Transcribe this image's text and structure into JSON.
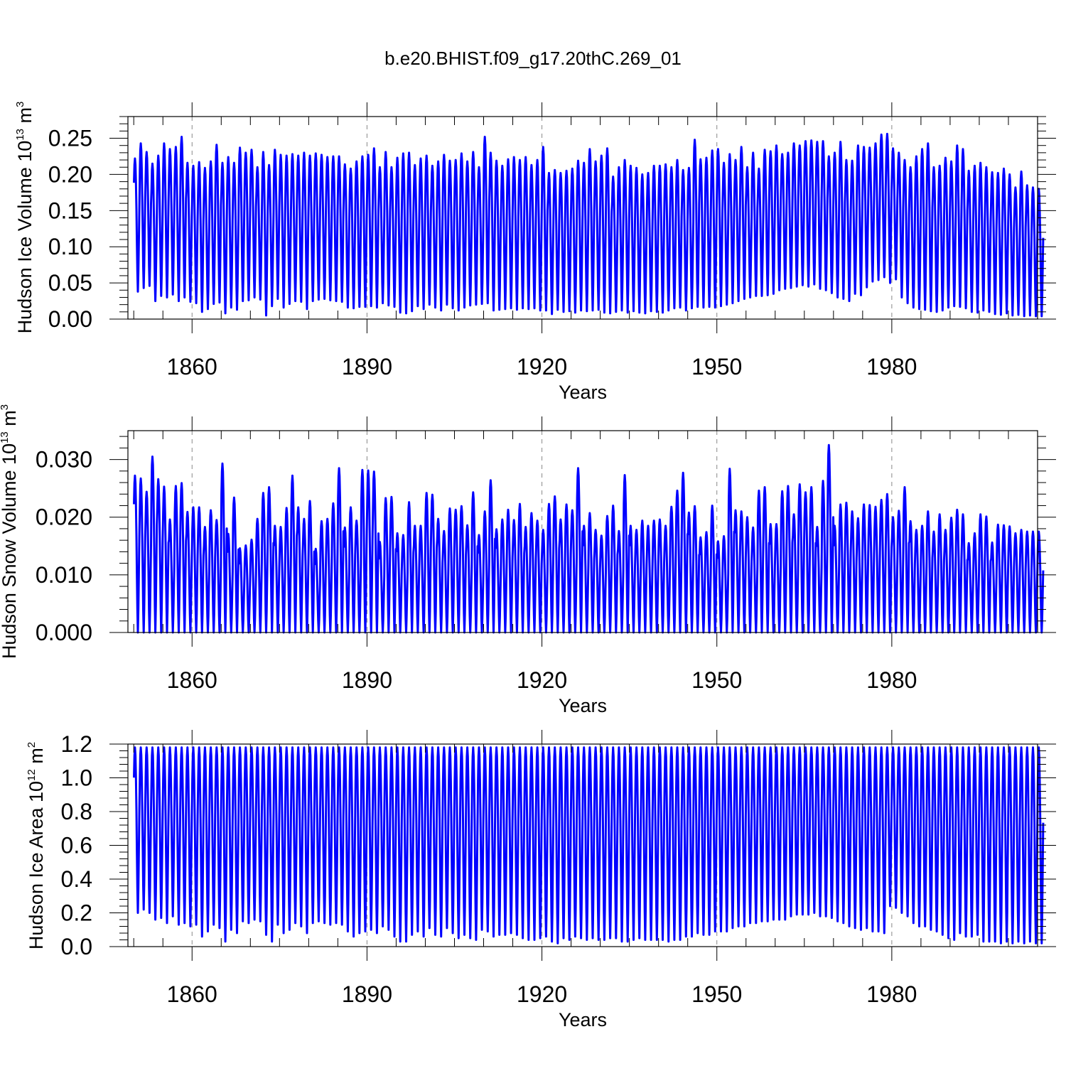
{
  "figure": {
    "title": "b.e20.BHIST.f09_g17.20thC.269_01",
    "line_color": "#0000ff",
    "grid_color": "#888888"
  },
  "chart_data": [
    {
      "type": "line",
      "name": "ice-volume",
      "title": "",
      "xlabel": "Years",
      "ylabel": "Hudson Ice Volume 10",
      "ylabel_exp": "13",
      "ylabel_unit": "m",
      "ylabel_unit_exp": "3",
      "xlim": [
        1849.0,
        2005.0
      ],
      "ylim": [
        0.0,
        0.28
      ],
      "x_ticks": [
        1860,
        1890,
        1920,
        1950,
        1980
      ],
      "y_ticks": [
        "0.00",
        "0.05",
        "0.10",
        "0.15",
        "0.20",
        "0.25"
      ],
      "y_tick_values": [
        0.0,
        0.05,
        0.1,
        0.15,
        0.2,
        0.25
      ],
      "y_minor_step": 0.01,
      "grid": "vertical dashed at major x ticks",
      "series": [
        {
          "seasonal_monthly": true,
          "start_year": 1850,
          "end_year": 2005,
          "annual_max": [
            0.222,
            0.243,
            0.231,
            0.215,
            0.226,
            0.243,
            0.235,
            0.238,
            0.252,
            0.216,
            0.212,
            0.217,
            0.209,
            0.218,
            0.241,
            0.216,
            0.224,
            0.216,
            0.237,
            0.23,
            0.234,
            0.21,
            0.231,
            0.213,
            0.234,
            0.227,
            0.226,
            0.228,
            0.226,
            0.23,
            0.226,
            0.229,
            0.227,
            0.224,
            0.225,
            0.225,
            0.214,
            0.208,
            0.218,
            0.225,
            0.227,
            0.236,
            0.21,
            0.231,
            0.21,
            0.223,
            0.229,
            0.23,
            0.213,
            0.222,
            0.226,
            0.212,
            0.218,
            0.227,
            0.219,
            0.22,
            0.229,
            0.218,
            0.231,
            0.21,
            0.252,
            0.23,
            0.219,
            0.212,
            0.221,
            0.224,
            0.22,
            0.224,
            0.213,
            0.22,
            0.238,
            0.202,
            0.206,
            0.202,
            0.205,
            0.208,
            0.219,
            0.216,
            0.235,
            0.218,
            0.226,
            0.236,
            0.197,
            0.21,
            0.22,
            0.212,
            0.209,
            0.2,
            0.202,
            0.212,
            0.212,
            0.214,
            0.21,
            0.22,
            0.206,
            0.209,
            0.248,
            0.221,
            0.223,
            0.233,
            0.235,
            0.216,
            0.228,
            0.22,
            0.238,
            0.21,
            0.23,
            0.208,
            0.234,
            0.232,
            0.24,
            0.228,
            0.23,
            0.243,
            0.24,
            0.246,
            0.247,
            0.245,
            0.246,
            0.225,
            0.23,
            0.245,
            0.22,
            0.219,
            0.24,
            0.238,
            0.237,
            0.243,
            0.255,
            0.256,
            0.236,
            0.23,
            0.22,
            0.21,
            0.225,
            0.235,
            0.243,
            0.21,
            0.212,
            0.223,
            0.218,
            0.24,
            0.235,
            0.205,
            0.212,
            0.216,
            0.21,
            0.203,
            0.202,
            0.208,
            0.2,
            0.182,
            0.204,
            0.185,
            0.182,
            0.18
          ],
          "annual_min": [
            0.038,
            0.043,
            0.046,
            0.025,
            0.032,
            0.03,
            0.034,
            0.025,
            0.03,
            0.024,
            0.022,
            0.01,
            0.014,
            0.021,
            0.023,
            0.008,
            0.016,
            0.013,
            0.025,
            0.026,
            0.03,
            0.027,
            0.005,
            0.018,
            0.028,
            0.016,
            0.021,
            0.025,
            0.024,
            0.014,
            0.025,
            0.027,
            0.028,
            0.026,
            0.025,
            0.024,
            0.016,
            0.015,
            0.017,
            0.017,
            0.018,
            0.016,
            0.022,
            0.019,
            0.017,
            0.009,
            0.008,
            0.011,
            0.018,
            0.014,
            0.02,
            0.016,
            0.012,
            0.02,
            0.015,
            0.012,
            0.016,
            0.019,
            0.02,
            0.021,
            0.022,
            0.012,
            0.013,
            0.014,
            0.015,
            0.013,
            0.015,
            0.014,
            0.015,
            0.012,
            0.012,
            0.007,
            0.013,
            0.01,
            0.011,
            0.009,
            0.012,
            0.011,
            0.012,
            0.013,
            0.009,
            0.008,
            0.01,
            0.012,
            0.009,
            0.011,
            0.009,
            0.008,
            0.011,
            0.01,
            0.009,
            0.012,
            0.015,
            0.016,
            0.012,
            0.015,
            0.017,
            0.016,
            0.017,
            0.016,
            0.018,
            0.02,
            0.022,
            0.025,
            0.028,
            0.03,
            0.032,
            0.032,
            0.033,
            0.035,
            0.04,
            0.042,
            0.043,
            0.045,
            0.047,
            0.045,
            0.048,
            0.042,
            0.04,
            0.036,
            0.03,
            0.028,
            0.025,
            0.035,
            0.033,
            0.044,
            0.052,
            0.054,
            0.058,
            0.05,
            0.055,
            0.03,
            0.022,
            0.016,
            0.014,
            0.013,
            0.011,
            0.01,
            0.012,
            0.016,
            0.018,
            0.017,
            0.015,
            0.01,
            0.009,
            0.012,
            0.01,
            0.007,
            0.006,
            0.008,
            0.005,
            0.006,
            0.004,
            0.005,
            0.004,
            0.004
          ]
        }
      ]
    },
    {
      "type": "line",
      "name": "snow-volume",
      "title": "",
      "xlabel": "Years",
      "ylabel": "Hudson Snow Volume 10",
      "ylabel_exp": "13",
      "ylabel_unit": "m",
      "ylabel_unit_exp": "3",
      "xlim": [
        1849.0,
        2005.0
      ],
      "ylim": [
        0.0,
        0.035
      ],
      "x_ticks": [
        1860,
        1890,
        1920,
        1950,
        1980
      ],
      "y_ticks": [
        "0.000",
        "0.010",
        "0.020",
        "0.030"
      ],
      "y_tick_values": [
        0.0,
        0.01,
        0.02,
        0.03
      ],
      "y_minor_step": 0.002,
      "grid": "vertical dashed at major x ticks",
      "series": [
        {
          "seasonal_monthly": true,
          "start_year": 1850,
          "end_year": 2005,
          "annual_max": [
            0.0272,
            0.0267,
            0.0244,
            0.0305,
            0.0266,
            0.0253,
            0.0196,
            0.0254,
            0.0259,
            0.0209,
            0.0217,
            0.0217,
            0.0183,
            0.0212,
            0.0195,
            0.0293,
            0.0171,
            0.0234,
            0.0146,
            0.0151,
            0.0161,
            0.0197,
            0.0242,
            0.0252,
            0.0185,
            0.0183,
            0.0216,
            0.0272,
            0.0217,
            0.0197,
            0.0228,
            0.0145,
            0.0193,
            0.0197,
            0.0224,
            0.0285,
            0.0182,
            0.0217,
            0.0194,
            0.0282,
            0.0281,
            0.0279,
            0.0157,
            0.0233,
            0.0235,
            0.0172,
            0.0169,
            0.0226,
            0.0185,
            0.0185,
            0.0242,
            0.0239,
            0.0197,
            0.0176,
            0.0215,
            0.0213,
            0.0219,
            0.0186,
            0.0243,
            0.0169,
            0.021,
            0.0264,
            0.0179,
            0.0196,
            0.0213,
            0.0195,
            0.0223,
            0.0183,
            0.0207,
            0.0194,
            0.0178,
            0.0223,
            0.0236,
            0.0196,
            0.0222,
            0.0212,
            0.0285,
            0.0185,
            0.0207,
            0.0178,
            0.0168,
            0.0202,
            0.022,
            0.0176,
            0.0273,
            0.0185,
            0.0178,
            0.0194,
            0.0185,
            0.0194,
            0.0196,
            0.0185,
            0.0218,
            0.0246,
            0.0277,
            0.0208,
            0.0219,
            0.0165,
            0.0174,
            0.022,
            0.0158,
            0.0167,
            0.0284,
            0.0212,
            0.021,
            0.02,
            0.0182,
            0.0246,
            0.0252,
            0.0188,
            0.0188,
            0.0245,
            0.0254,
            0.0205,
            0.0257,
            0.0243,
            0.0252,
            0.0183,
            0.0263,
            0.0325,
            0.0185,
            0.0222,
            0.0225,
            0.021,
            0.0198,
            0.0222,
            0.0221,
            0.0218,
            0.023,
            0.024,
            0.02,
            0.0211,
            0.0252,
            0.0193,
            0.0178,
            0.0185,
            0.021,
            0.0175,
            0.0205,
            0.0178,
            0.0199,
            0.0213,
            0.0205,
            0.0155,
            0.0172,
            0.0205,
            0.0201,
            0.0156,
            0.0187,
            0.0186,
            0.0184,
            0.0172,
            0.0178,
            0.0175
          ],
          "annual_min": [
            0.0
          ]
        }
      ]
    },
    {
      "type": "line",
      "name": "ice-area",
      "title": "",
      "xlabel": "Years",
      "ylabel": "Hudson Ice Area 10",
      "ylabel_exp": "12",
      "ylabel_unit": "m",
      "ylabel_unit_exp": "2",
      "xlim": [
        1849.0,
        2005.0
      ],
      "ylim": [
        0.0,
        1.2
      ],
      "x_ticks": [
        1860,
        1890,
        1920,
        1950,
        1980
      ],
      "y_ticks": [
        "0.0",
        "0.2",
        "0.4",
        "0.6",
        "0.8",
        "1.0",
        "1.2"
      ],
      "y_tick_values": [
        0.0,
        0.2,
        0.4,
        0.6,
        0.8,
        1.0,
        1.2
      ],
      "y_minor_step": 0.04,
      "grid": "vertical dashed at major x ticks",
      "series": [
        {
          "seasonal_monthly": true,
          "start_year": 1850,
          "end_year": 2005,
          "annual_max": [
            1.18
          ],
          "annual_min": [
            0.2,
            0.22,
            0.2,
            0.16,
            0.17,
            0.14,
            0.18,
            0.13,
            0.14,
            0.12,
            0.13,
            0.06,
            0.09,
            0.13,
            0.11,
            0.03,
            0.1,
            0.08,
            0.15,
            0.14,
            0.16,
            0.15,
            0.07,
            0.03,
            0.13,
            0.08,
            0.1,
            0.14,
            0.12,
            0.08,
            0.14,
            0.15,
            0.14,
            0.13,
            0.14,
            0.13,
            0.09,
            0.06,
            0.08,
            0.09,
            0.1,
            0.08,
            0.12,
            0.1,
            0.06,
            0.03,
            0.03,
            0.07,
            0.09,
            0.06,
            0.11,
            0.07,
            0.06,
            0.11,
            0.08,
            0.05,
            0.07,
            0.05,
            0.04,
            0.1,
            0.09,
            0.06,
            0.07,
            0.07,
            0.08,
            0.07,
            0.05,
            0.04,
            0.04,
            0.05,
            0.06,
            0.03,
            0.02,
            0.05,
            0.04,
            0.06,
            0.05,
            0.04,
            0.05,
            0.04,
            0.04,
            0.05,
            0.05,
            0.03,
            0.03,
            0.04,
            0.05,
            0.04,
            0.04,
            0.04,
            0.04,
            0.03,
            0.04,
            0.04,
            0.06,
            0.06,
            0.08,
            0.07,
            0.07,
            0.09,
            0.09,
            0.09,
            0.11,
            0.12,
            0.12,
            0.14,
            0.14,
            0.15,
            0.15,
            0.16,
            0.16,
            0.16,
            0.18,
            0.19,
            0.19,
            0.19,
            0.2,
            0.18,
            0.18,
            0.17,
            0.15,
            0.14,
            0.12,
            0.11,
            0.1,
            0.11,
            0.09,
            0.09,
            0.08,
            0.24,
            0.23,
            0.2,
            0.18,
            0.14,
            0.12,
            0.12,
            0.1,
            0.09,
            0.07,
            0.05,
            0.04,
            0.08,
            0.06,
            0.06,
            0.07,
            0.03,
            0.03,
            0.03,
            0.02,
            0.03,
            0.02,
            0.03,
            0.02,
            0.03,
            0.02,
            0.02
          ]
        }
      ]
    }
  ]
}
